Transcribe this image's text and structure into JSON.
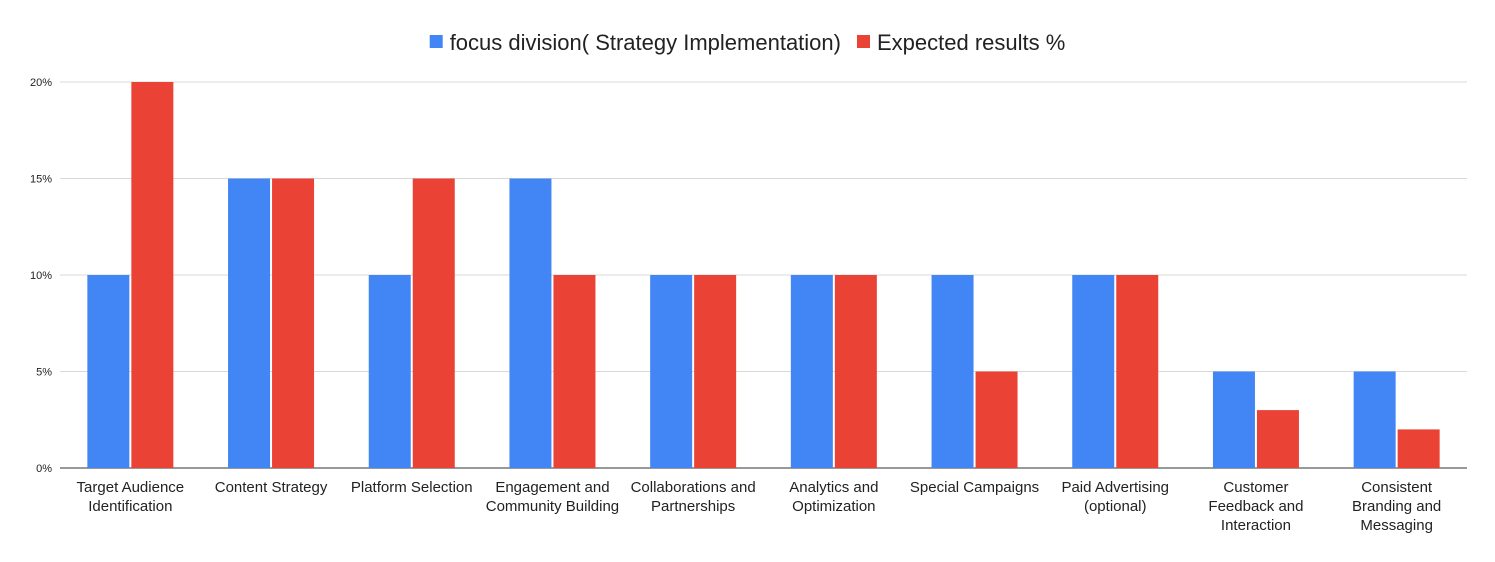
{
  "chart_data": {
    "type": "bar",
    "categories": [
      "Target Audience Identification",
      "Content Strategy",
      "Platform Selection",
      "Engagement and Community Building",
      "Collaborations and Partnerships",
      "Analytics and Optimization",
      "Special Campaigns",
      "Paid Advertising (optional)",
      "Customer Feedback and Interaction",
      "Consistent Branding and Messaging"
    ],
    "series": [
      {
        "name": "focus division( Strategy Implementation)",
        "color": "#4285f4",
        "values": [
          10,
          15,
          10,
          15,
          10,
          10,
          10,
          10,
          5,
          5
        ]
      },
      {
        "name": "Expected results %",
        "color": "#ea4335",
        "values": [
          20,
          15,
          15,
          10,
          10,
          10,
          5,
          10,
          3,
          2
        ]
      }
    ],
    "ylim": [
      0,
      20
    ],
    "yticks": [
      {
        "value": 0,
        "label": "0%"
      },
      {
        "value": 5,
        "label": "5%"
      },
      {
        "value": 10,
        "label": "10%"
      },
      {
        "value": 15,
        "label": "15%"
      },
      {
        "value": 20,
        "label": "20%"
      }
    ],
    "grid": true,
    "legend": "top"
  }
}
